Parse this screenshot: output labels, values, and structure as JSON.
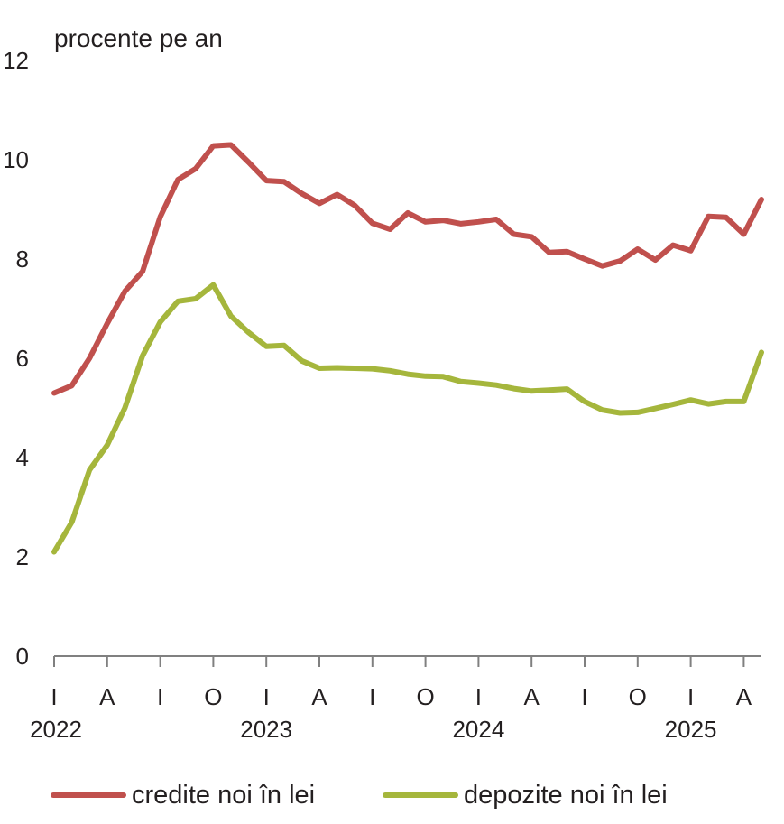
{
  "chart_data": {
    "type": "line",
    "ylabel": "procente pe an",
    "ylim": [
      0,
      12
    ],
    "yticks": [
      0,
      2,
      4,
      6,
      8,
      10,
      12
    ],
    "grid": false,
    "legend_position": "bottom",
    "x_month_labels": [
      "I",
      "A",
      "I",
      "O",
      "I",
      "A",
      "I",
      "O",
      "I",
      "A",
      "I",
      "O",
      "I",
      "A"
    ],
    "x_year_labels": [
      "2022",
      "2023",
      "2024",
      "2025"
    ],
    "x": [
      "2022-01",
      "2022-02",
      "2022-03",
      "2022-04",
      "2022-05",
      "2022-06",
      "2022-07",
      "2022-08",
      "2022-09",
      "2022-10",
      "2022-11",
      "2022-12",
      "2023-01",
      "2023-02",
      "2023-03",
      "2023-04",
      "2023-05",
      "2023-06",
      "2023-07",
      "2023-08",
      "2023-09",
      "2023-10",
      "2023-11",
      "2023-12",
      "2024-01",
      "2024-02",
      "2024-03",
      "2024-04",
      "2024-05",
      "2024-06",
      "2024-07",
      "2024-08",
      "2024-09",
      "2024-10",
      "2024-11",
      "2024-12",
      "2025-01",
      "2025-02",
      "2025-03",
      "2025-04",
      "2025-05"
    ],
    "series": [
      {
        "name": "credite noi în lei",
        "color": "#c0504d",
        "values": [
          5.3,
          5.45,
          6.0,
          6.7,
          7.35,
          7.75,
          8.85,
          9.6,
          9.82,
          10.28,
          10.3,
          9.95,
          9.58,
          9.56,
          9.32,
          9.12,
          9.3,
          9.08,
          8.72,
          8.6,
          8.93,
          8.75,
          8.78,
          8.71,
          8.75,
          8.8,
          8.5,
          8.45,
          8.13,
          8.15,
          8.0,
          7.86,
          7.96,
          8.2,
          7.98,
          8.28,
          8.17,
          8.86,
          8.84,
          8.5,
          9.2
        ]
      },
      {
        "name": "depozite noi în lei",
        "color": "#a5b63c",
        "values": [
          2.1,
          2.7,
          3.75,
          4.25,
          5.0,
          6.05,
          6.73,
          7.15,
          7.2,
          7.48,
          6.85,
          6.52,
          6.24,
          6.26,
          5.95,
          5.8,
          5.81,
          5.8,
          5.79,
          5.75,
          5.68,
          5.64,
          5.63,
          5.53,
          5.5,
          5.46,
          5.39,
          5.34,
          5.36,
          5.38,
          5.13,
          4.96,
          4.9,
          4.91,
          4.99,
          5.07,
          5.16,
          5.08,
          5.13,
          5.13,
          6.12
        ]
      }
    ]
  }
}
